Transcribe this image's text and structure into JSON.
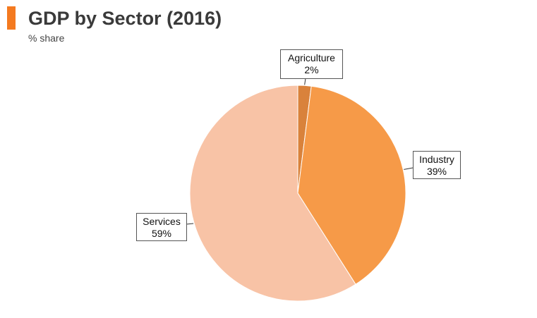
{
  "header": {
    "title": "GDP by Sector (2016)",
    "subtitle": "% share",
    "accent_color": "#f47a20"
  },
  "chart_data": {
    "type": "pie",
    "title": "GDP by Sector (2016)",
    "subtitle": "% share",
    "slices": [
      {
        "name": "Agriculture",
        "value": 2,
        "label": "2%",
        "color": "#d9823b"
      },
      {
        "name": "Industry",
        "value": 39,
        "label": "39%",
        "color": "#f69a48"
      },
      {
        "name": "Services",
        "value": 59,
        "label": "59%",
        "color": "#f8c3a6"
      }
    ],
    "start_angle_deg": 0,
    "direction": "clockwise",
    "legend": "none",
    "labels": "callout-boxes"
  }
}
